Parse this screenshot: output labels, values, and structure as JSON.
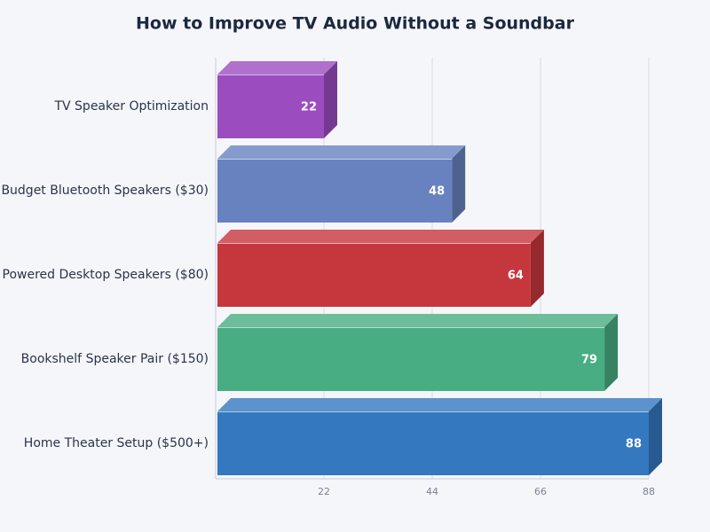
{
  "chart_data": {
    "type": "bar3d",
    "orientation": "horizontal",
    "title": "How to Improve TV Audio Without a Soundbar",
    "categories": [
      "TV Speaker Optimization",
      "Budget Bluetooth Speakers ($30)",
      "Powered Desktop Speakers ($80)",
      "Bookshelf Speaker Pair ($150)",
      "Home Theater Setup ($500+)"
    ],
    "values": [
      22,
      48,
      64,
      79,
      88
    ],
    "colors": [
      "#9b4dc0",
      "#6882c0",
      "#c6363d",
      "#48ad82",
      "#3478c0"
    ],
    "xlim": [
      0,
      88
    ],
    "xticks": [
      22,
      44,
      66,
      88
    ],
    "grid": true
  }
}
